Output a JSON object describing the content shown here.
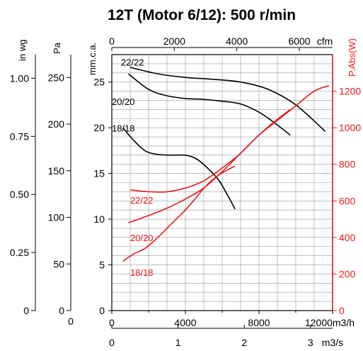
{
  "chart_data": {
    "type": "line",
    "title": "12T (Motor 6/12): 500 r/min",
    "x": {
      "label": "m3/h",
      "min": 0,
      "max": 12000,
      "tick_values": [
        0,
        4000,
        8000,
        12000
      ],
      "tick_labels": [
        "0",
        "4000",
        "8000",
        "12000"
      ]
    },
    "top_axis": {
      "label": "cfm",
      "min": 0,
      "max": 7063,
      "ticks": [
        0,
        2000,
        4000,
        6000
      ]
    },
    "bottom_axis2": {
      "label": "m3/s",
      "min": 0,
      "max": 3.333,
      "ticks": [
        0,
        1,
        2,
        3
      ]
    },
    "y_left": {
      "label": "mm.c.a.",
      "min": 0,
      "max": 28,
      "ticks": [
        0,
        5,
        10,
        15,
        20,
        25
      ]
    },
    "y_pa": {
      "label": "Pa",
      "min": 0,
      "max": 274.6,
      "ticks": [
        0,
        50,
        100,
        150,
        200,
        250
      ]
    },
    "y_inwg": {
      "label": "in wg",
      "min": 0,
      "max": 1.102,
      "ticks": [
        0,
        0.25,
        0.5,
        0.75,
        1.0
      ],
      "tick_labels": [
        "0",
        "0.25",
        "0.50",
        "0.75",
        "1.00"
      ]
    },
    "y_right": {
      "label": "P.Abs(W)",
      "min": 0,
      "max": 1400,
      "ticks": [
        0,
        200,
        400,
        600,
        800,
        1000,
        1200
      ],
      "tick_labels": [
        "0",
        "200",
        "400",
        "600",
        "800",
        "1000",
        "1200"
      ]
    },
    "grid": true,
    "pressure_series": [
      {
        "name": "22/22",
        "label_at": [
          500,
          26.8
        ],
        "x": [
          1000,
          2500,
          4000,
          5500,
          7000,
          8500,
          10000,
          11600
        ],
        "y": [
          26.6,
          25.9,
          25.5,
          25.3,
          25.0,
          24.2,
          22.5,
          19.6
        ]
      },
      {
        "name": "20/20",
        "label_at": [
          0,
          22.5
        ],
        "x": [
          900,
          2000,
          3000,
          4000,
          5000,
          6000,
          7000,
          8000,
          8800,
          9700
        ],
        "y": [
          25.9,
          24.2,
          23.5,
          23.2,
          23.1,
          22.9,
          22.6,
          21.7,
          20.6,
          19.2
        ]
      },
      {
        "name": "18/18",
        "label_at": [
          0,
          19.6
        ],
        "x": [
          600,
          1200,
          1800,
          2400,
          3200,
          4000,
          4600,
          5200,
          5800,
          6300,
          6700
        ],
        "y": [
          20.0,
          18.6,
          17.5,
          17.1,
          17.0,
          17.0,
          16.6,
          15.6,
          14.3,
          12.6,
          11.1
        ]
      }
    ],
    "power_series": [
      {
        "name": "22/22",
        "label_at": [
          1000,
          585
        ],
        "x": [
          1000,
          2000,
          3000,
          4000,
          5000,
          6000,
          7000,
          8000,
          9000,
          10000,
          11000,
          11800
        ],
        "y": [
          660,
          650,
          650,
          670,
          710,
          780,
          860,
          960,
          1040,
          1120,
          1200,
          1230
        ]
      },
      {
        "name": "20/20",
        "label_at": [
          1000,
          380
        ],
        "x": [
          900,
          2000,
          3000,
          4000,
          5000,
          6000,
          7000,
          8000,
          8800,
          9700
        ],
        "y": [
          480,
          520,
          560,
          610,
          670,
          760,
          860,
          960,
          1030,
          1100
        ]
      },
      {
        "name": "18/18",
        "label_at": [
          1000,
          190
        ],
        "x": [
          600,
          1200,
          1800,
          2400,
          3200,
          4000,
          4600,
          5200,
          5800,
          6300,
          6700
        ],
        "y": [
          270,
          310,
          340,
          390,
          470,
          550,
          620,
          690,
          740,
          770,
          790
        ]
      }
    ],
    "colors": {
      "pressure": "#000000",
      "power": "#e31b1b",
      "grid": "#9a9a9a",
      "axis": "#000000"
    }
  }
}
